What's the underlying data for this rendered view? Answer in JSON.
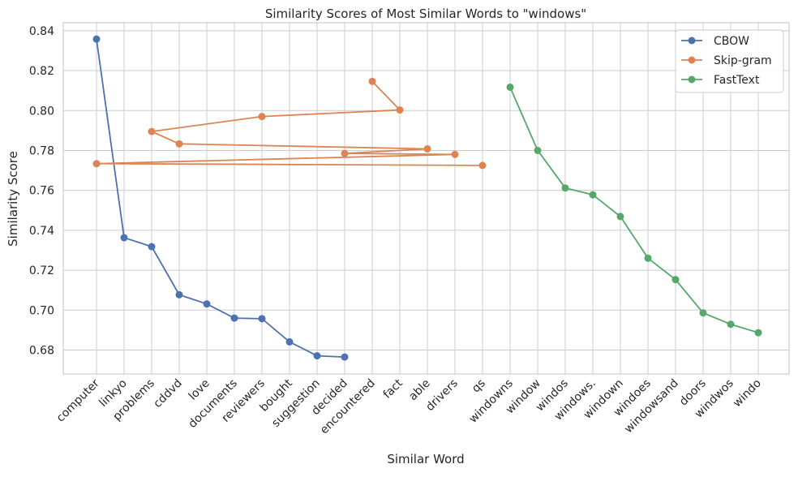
{
  "chart_data": {
    "type": "line",
    "title": "Similarity Scores of Most Similar Words to \"windows\"",
    "xlabel": "Similar Word",
    "ylabel": "Similarity Score",
    "categories": [
      "computer",
      "linkyo",
      "problems",
      "cddvd",
      "love",
      "documents",
      "reviewers",
      "bought",
      "suggestion",
      "decided",
      "encountered",
      "fact",
      "able",
      "drivers",
      "qs",
      "windowns",
      "window",
      "windos",
      "windows.",
      "windown",
      "windoes",
      "windowsand",
      "doors",
      "windwos",
      "windo"
    ],
    "ylim": [
      0.668,
      0.844
    ],
    "yticks": [
      "0.68",
      "0.70",
      "0.72",
      "0.74",
      "0.76",
      "0.78",
      "0.80",
      "0.82",
      "0.84"
    ],
    "grid": true,
    "legend_position": "top-right",
    "series": [
      {
        "name": "CBOW",
        "color": "#4c72b0",
        "points": [
          [
            "computer",
            0.8358
          ],
          [
            "linkyo",
            0.7363
          ],
          [
            "problems",
            0.7318
          ],
          [
            "cddvd",
            0.7077
          ],
          [
            "love",
            0.7031
          ],
          [
            "documents",
            0.696
          ],
          [
            "reviewers",
            0.6957
          ],
          [
            "bought",
            0.6841
          ],
          [
            "suggestion",
            0.6771
          ],
          [
            "decided",
            0.6765
          ]
        ]
      },
      {
        "name": "Skip-gram",
        "color": "#dd8452",
        "points": [
          [
            "encountered",
            0.8146
          ],
          [
            "fact",
            0.8003
          ],
          [
            "reviewers",
            0.797
          ],
          [
            "problems",
            0.7895
          ],
          [
            "cddvd",
            0.7833
          ],
          [
            "able",
            0.7808
          ],
          [
            "decided",
            0.7785
          ],
          [
            "drivers",
            0.778
          ],
          [
            "computer",
            0.7734
          ],
          [
            "qs",
            0.7725
          ]
        ]
      },
      {
        "name": "FastText",
        "color": "#55a868",
        "points": [
          [
            "windowns",
            0.8117
          ],
          [
            "window",
            0.78
          ],
          [
            "windos",
            0.7612
          ],
          [
            "windows.",
            0.7578
          ],
          [
            "windown",
            0.7469
          ],
          [
            "windoes",
            0.726
          ],
          [
            "windowsand",
            0.7153
          ],
          [
            "doors",
            0.6986
          ],
          [
            "windwos",
            0.6929
          ],
          [
            "windo",
            0.6887
          ]
        ]
      }
    ]
  }
}
